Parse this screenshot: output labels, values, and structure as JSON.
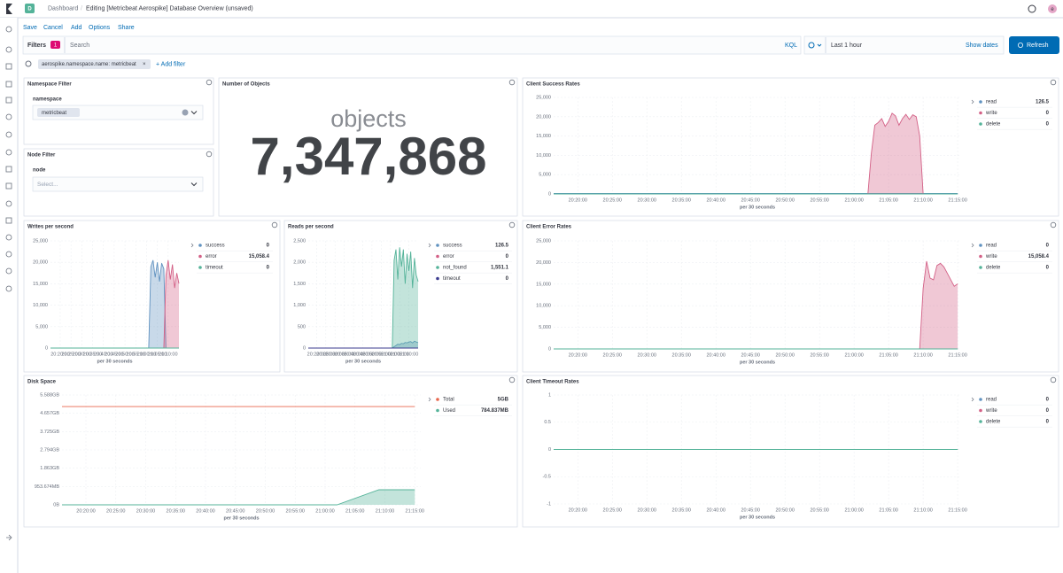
{
  "header": {
    "avatar": "D",
    "breadcrumbs": [
      "Dashboard",
      "Editing [Metricbeat Aerospike] Database Overview (unsaved)"
    ],
    "user": "e"
  },
  "menu": [
    "Save",
    "Cancel",
    "Add",
    "Options",
    "Share"
  ],
  "query": {
    "filters_label": "Filters",
    "filters_count": 1,
    "placeholder": "Search",
    "language": "KQL",
    "time_range": "Last 1 hour",
    "show_dates": "Show dates",
    "refresh": "Refresh"
  },
  "filters": {
    "pills": [
      "aerospike.namespace.name: metricbeat"
    ],
    "add_filter": "+ Add filter"
  },
  "panels": {
    "namespace_filter": {
      "title": "Namespace Filter",
      "label": "namespace",
      "value": "metricbeat"
    },
    "node_filter": {
      "title": "Node Filter",
      "label": "node",
      "placeholder": "Select..."
    },
    "objects": {
      "title": "Number of Objects",
      "label": "objects",
      "value": 7347868,
      "value_label": "7,347,868"
    }
  },
  "chart_data": [
    {
      "type": "area",
      "title": "Client Success Rates",
      "x_label": "per 30 seconds",
      "grid": true,
      "legend": "right",
      "x": [
        "20:16:30",
        "21:01:30",
        "21:02:00",
        "21:02:30",
        "21:03:00",
        "21:03:30",
        "21:04:00",
        "21:04:30",
        "21:05:00",
        "21:05:30",
        "21:06:00",
        "21:06:30",
        "21:07:00",
        "21:07:30",
        "21:08:00",
        "21:08:30",
        "21:09:00",
        "21:09:30",
        "21:10:00",
        "21:10:30",
        "21:15:00"
      ],
      "xlim": [
        "20:16:30",
        "21:15:30"
      ],
      "xticks": [
        "20:20:00",
        "20:25:00",
        "20:30:00",
        "20:35:00",
        "20:40:00",
        "20:45:00",
        "20:50:00",
        "20:55:00",
        "21:00:00",
        "21:05:00",
        "21:10:00",
        "21:15:00"
      ],
      "ylim": [
        0,
        25000
      ],
      "yticks": [
        0,
        {
          "value": 5000,
          "label": "5,000"
        },
        {
          "value": 10000,
          "label": "10,000"
        },
        {
          "value": 15000,
          "label": "15,000"
        },
        {
          "value": 20000,
          "label": "20,000"
        },
        {
          "value": 25000,
          "label": "25,000"
        }
      ],
      "series": [
        {
          "name": "read",
          "color": "#6092c0",
          "last": 126.5,
          "values": [
            126.5,
            126.5,
            126.5,
            126.5,
            126.5,
            126.5,
            126.5,
            126.5,
            126.5,
            126.5,
            126.5,
            126.5,
            126.5,
            126.5,
            126.5,
            126.5,
            126.5,
            126.5,
            126.5,
            126.5,
            126.5
          ]
        },
        {
          "name": "write",
          "color": "#d36086",
          "last": 0,
          "values": [
            0,
            0,
            0,
            10500,
            17800,
            18500,
            19500,
            17500,
            18800,
            20900,
            20200,
            17800,
            19500,
            20600,
            19300,
            20500,
            20000,
            15000,
            0,
            0,
            0
          ]
        },
        {
          "name": "delete",
          "color": "#54b399",
          "last": 0,
          "values": [
            0,
            0,
            0,
            0,
            0,
            0,
            0,
            0,
            0,
            0,
            0,
            0,
            0,
            0,
            0,
            0,
            0,
            0,
            0,
            0,
            0
          ]
        }
      ]
    },
    {
      "type": "area",
      "title": "Writes per second",
      "x_label": "per 30 seconds",
      "grid": true,
      "legend": "right",
      "x": [
        "20:15:30",
        "21:01:00",
        "21:02:00",
        "21:03:00",
        "21:04:00",
        "21:05:00",
        "21:06:00",
        "21:07:00",
        "21:08:00",
        "21:09:00",
        "21:10:00",
        "21:11:00",
        "21:12:00",
        "21:13:00",
        "21:14:00",
        "21:15:00"
      ],
      "xlim": [
        "20:15:30",
        "21:15:00"
      ],
      "xticks": [
        "20:20:00",
        "20:25:00",
        "20:30:00",
        "20:35:00",
        "20:40:00",
        "20:45:00",
        "20:50:00",
        "20:55:00",
        "21:00:00",
        "21:05:00",
        "21:10:00"
      ],
      "ylim": [
        0,
        25000
      ],
      "yticks": [
        0,
        {
          "value": 5000,
          "label": "5,000"
        },
        {
          "value": 10000,
          "label": "10,000"
        },
        {
          "value": 15000,
          "label": "15,000"
        },
        {
          "value": 20000,
          "label": "20,000"
        },
        {
          "value": 25000,
          "label": "25,000"
        }
      ],
      "series": [
        {
          "name": "success",
          "color": "#6092c0",
          "last": 0,
          "values": [
            0,
            0,
            19000,
            20500,
            16500,
            20000,
            15500,
            19800,
            18500,
            0,
            0,
            0,
            0,
            0,
            0,
            0
          ]
        },
        {
          "name": "error",
          "color": "#d36086",
          "last": 15058.4,
          "last_label": "15,058.4",
          "values": [
            0,
            0,
            0,
            0,
            0,
            0,
            0,
            0,
            0,
            17000,
            20500,
            16000,
            19500,
            14000,
            17500,
            15058.4
          ]
        },
        {
          "name": "timeout",
          "color": "#54b399",
          "last": 0,
          "values": [
            0,
            0,
            0,
            0,
            0,
            0,
            0,
            0,
            0,
            0,
            0,
            0,
            0,
            0,
            0,
            0
          ]
        }
      ]
    },
    {
      "type": "area",
      "title": "Reads per second",
      "x_label": "per 30 seconds",
      "grid": true,
      "legend": "right",
      "x": [
        "20:15:30",
        "21:01:00",
        "21:02:00",
        "21:03:00",
        "21:04:00",
        "21:05:00",
        "21:06:00",
        "21:07:00",
        "21:08:00",
        "21:09:00",
        "21:10:00",
        "21:11:00",
        "21:12:00",
        "21:13:00",
        "21:14:00",
        "21:15:00"
      ],
      "xlim": [
        "20:15:30",
        "21:15:00"
      ],
      "xticks": [
        "20:20:00",
        "20:25:00",
        "20:30:00",
        "20:35:00",
        "20:40:00",
        "20:45:00",
        "20:50:00",
        "20:55:00",
        "21:00:00",
        "21:05:00",
        "21:10:00"
      ],
      "ylim": [
        0,
        2500
      ],
      "yticks": [
        0,
        500,
        {
          "value": 1000,
          "label": "1,000"
        },
        {
          "value": 1500,
          "label": "1,500"
        },
        {
          "value": 2000,
          "label": "2,000"
        },
        {
          "value": 2500,
          "label": "2,500"
        }
      ],
      "series": [
        {
          "name": "success",
          "color": "#6092c0",
          "last": 126.5,
          "values": [
            0,
            0,
            30,
            60,
            90,
            80,
            110,
            100,
            130,
            120,
            140,
            150,
            120,
            160,
            140,
            126.5
          ]
        },
        {
          "name": "error",
          "color": "#d36086",
          "last": 0,
          "values": [
            0,
            0,
            0,
            0,
            0,
            0,
            0,
            0,
            0,
            0,
            0,
            0,
            0,
            0,
            0,
            0
          ]
        },
        {
          "name": "not_found",
          "color": "#54b399",
          "last": 1551.1,
          "last_label": "1,551.1",
          "values": [
            0,
            0,
            2050,
            2300,
            1600,
            2350,
            1900,
            2300,
            1500,
            2200,
            1800,
            2250,
            1400,
            2100,
            1700,
            1551.1
          ]
        },
        {
          "name": "timeout",
          "color": "#3b3b8f",
          "last": 0,
          "values": [
            0,
            0,
            0,
            0,
            0,
            0,
            0,
            0,
            0,
            0,
            0,
            0,
            0,
            0,
            0,
            0
          ]
        }
      ]
    },
    {
      "type": "area",
      "title": "Client Error Rates",
      "x_label": "per 30 seconds",
      "grid": true,
      "legend": "right",
      "x": [
        "20:16:30",
        "21:09:30",
        "21:10:00",
        "21:10:30",
        "21:11:00",
        "21:11:30",
        "21:12:00",
        "21:12:30",
        "21:13:00",
        "21:13:30",
        "21:14:00",
        "21:14:30",
        "21:15:00"
      ],
      "xlim": [
        "20:16:30",
        "21:15:30"
      ],
      "xticks": [
        "20:20:00",
        "20:25:00",
        "20:30:00",
        "20:35:00",
        "20:40:00",
        "20:45:00",
        "20:50:00",
        "20:55:00",
        "21:00:00",
        "21:05:00",
        "21:10:00",
        "21:15:00"
      ],
      "ylim": [
        0,
        25000
      ],
      "yticks": [
        0,
        {
          "value": 5000,
          "label": "5,000"
        },
        {
          "value": 10000,
          "label": "10,000"
        },
        {
          "value": 15000,
          "label": "15,000"
        },
        {
          "value": 20000,
          "label": "20,000"
        },
        {
          "value": 25000,
          "label": "25,000"
        }
      ],
      "series": [
        {
          "name": "read",
          "color": "#6092c0",
          "last": 0,
          "values": [
            0,
            0,
            0,
            0,
            0,
            0,
            0,
            0,
            0,
            0,
            0,
            0,
            0
          ]
        },
        {
          "name": "write",
          "color": "#d36086",
          "last": 15058.4,
          "last_label": "15,058.4",
          "values": [
            0,
            0,
            14000,
            20300,
            16400,
            16000,
            19300,
            19800,
            19000,
            17500,
            16000,
            14500,
            15058.4
          ]
        },
        {
          "name": "delete",
          "color": "#54b399",
          "last": 0,
          "values": [
            0,
            0,
            0,
            0,
            0,
            0,
            0,
            0,
            0,
            0,
            0,
            0,
            0
          ]
        }
      ]
    },
    {
      "type": "area",
      "title": "Disk Space",
      "x_label": "per 30 seconds",
      "grid": true,
      "legend": "right",
      "x": [
        "20:16:00",
        "21:02:00",
        "21:09:00",
        "21:15:00"
      ],
      "xlim": [
        "20:16:00",
        "21:16:00"
      ],
      "xticks": [
        "20:20:00",
        "20:25:00",
        "20:30:00",
        "20:35:00",
        "20:40:00",
        "20:45:00",
        "20:50:00",
        "20:55:00",
        "21:00:00",
        "21:05:00",
        "21:10:00",
        "21:15:00"
      ],
      "ylim": [
        0,
        6000000000
      ],
      "yticks": [
        {
          "value": 0,
          "label": "0B"
        },
        {
          "value": 1000000000,
          "label": "953.674MB"
        },
        {
          "value": 2000000000,
          "label": "1.863GB"
        },
        {
          "value": 3000000000,
          "label": "2.794GB"
        },
        {
          "value": 4000000000,
          "label": "3.725GB"
        },
        {
          "value": 5000000000,
          "label": "4.657GB"
        },
        {
          "value": 6000000000,
          "label": "5.588GB"
        }
      ],
      "series": [
        {
          "name": "Total",
          "type": "line",
          "color": "#e7664c",
          "last": 5368709120,
          "last_label": "5GB",
          "values": [
            5368709120,
            5368709120,
            5368709120,
            5368709120
          ]
        },
        {
          "name": "Used",
          "color": "#54b399",
          "last": 822961242,
          "last_label": "784.837MB",
          "values": [
            0,
            0,
            822961242,
            822961242
          ]
        }
      ]
    },
    {
      "type": "area",
      "title": "Client Timeout Rates",
      "x_label": "per 30 seconds",
      "grid": true,
      "legend": "right",
      "x": [
        "20:16:30",
        "21:15:00"
      ],
      "xlim": [
        "20:16:30",
        "21:15:30"
      ],
      "xticks": [
        "20:20:00",
        "20:25:00",
        "20:30:00",
        "20:35:00",
        "20:40:00",
        "20:45:00",
        "20:50:00",
        "20:55:00",
        "21:00:00",
        "21:05:00",
        "21:10:00",
        "21:15:00"
      ],
      "ylim": [
        -1,
        1
      ],
      "yticks": [
        -1,
        -0.5,
        0,
        0.5,
        1
      ],
      "series": [
        {
          "name": "read",
          "color": "#6092c0",
          "last": 0,
          "values": [
            0,
            0
          ]
        },
        {
          "name": "write",
          "color": "#d36086",
          "last": 0,
          "values": [
            0,
            0
          ]
        },
        {
          "name": "delete",
          "color": "#54b399",
          "last": 0,
          "values": [
            0,
            0
          ]
        }
      ]
    }
  ]
}
